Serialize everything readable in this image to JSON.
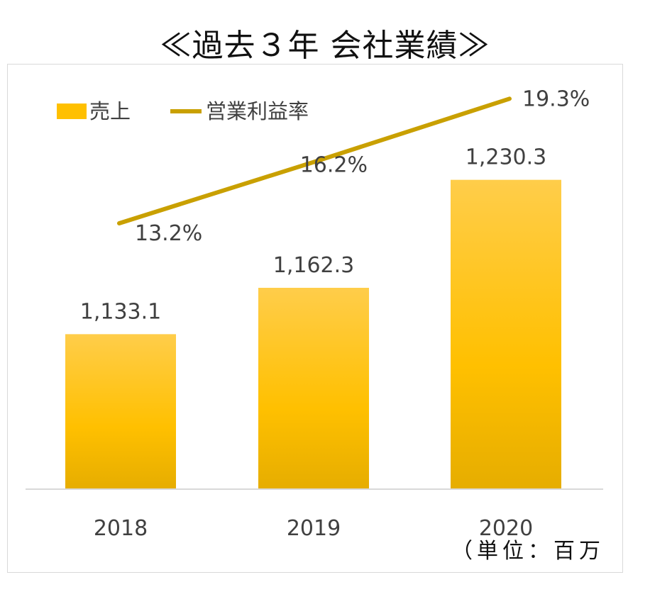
{
  "title": "≪過去３年 会社業績≫",
  "unit_note": "（単位：百万",
  "colors": {
    "bar": "#ffc000",
    "bar_light": "#ffcd4a",
    "bar_dark": "#e6ad00",
    "line": "#c9a000",
    "axis": "#d9d9d9",
    "text": "#404040"
  },
  "chart_data": {
    "type": "bar",
    "categories": [
      "2018",
      "2019",
      "2020"
    ],
    "series": [
      {
        "name": "売上",
        "type": "bar",
        "values": [
          1133.1,
          1162.3,
          1230.3
        ],
        "labels": [
          "1,133.1",
          "1,162.3",
          "1,230.3"
        ]
      },
      {
        "name": "営業利益率",
        "type": "line",
        "values": [
          13.2,
          16.2,
          19.3
        ],
        "labels": [
          "13.2%",
          "16.2%",
          "19.3%"
        ]
      }
    ],
    "legend": "top-left"
  }
}
